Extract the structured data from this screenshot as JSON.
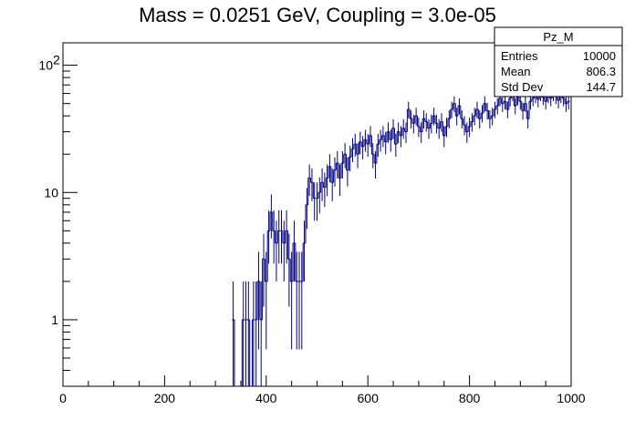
{
  "chart_data": {
    "type": "histogram",
    "title": "Mass = 0.0251 GeV, Coupling = 3.0e-05",
    "xlabel": "",
    "ylabel": "",
    "xlim": [
      0,
      1000
    ],
    "ylim": [
      0.3,
      150
    ],
    "yscale": "log",
    "grid": false,
    "line_color": "#000080",
    "x_ticks": [
      {
        "value": 0,
        "label": "0"
      },
      {
        "value": 200,
        "label": "200"
      },
      {
        "value": 400,
        "label": "400"
      },
      {
        "value": 600,
        "label": "600"
      },
      {
        "value": 800,
        "label": "800"
      },
      {
        "value": 1000,
        "label": "1000"
      }
    ],
    "y_ticks": [
      {
        "value": 1,
        "label": "1"
      },
      {
        "value": 10,
        "label": "10"
      },
      {
        "value": 100,
        "label": "10",
        "exponent": "2"
      }
    ],
    "bin_width": 5,
    "bins": [
      {
        "x": 335,
        "y": 1
      },
      {
        "x": 340,
        "y": 0
      },
      {
        "x": 350,
        "y": 0
      },
      {
        "x": 355,
        "y": 1
      },
      {
        "x": 360,
        "y": 1
      },
      {
        "x": 365,
        "y": 1
      },
      {
        "x": 370,
        "y": 0
      },
      {
        "x": 375,
        "y": 1
      },
      {
        "x": 380,
        "y": 1
      },
      {
        "x": 385,
        "y": 2
      },
      {
        "x": 390,
        "y": 1
      },
      {
        "x": 395,
        "y": 3
      },
      {
        "x": 400,
        "y": 2
      },
      {
        "x": 405,
        "y": 5
      },
      {
        "x": 410,
        "y": 7
      },
      {
        "x": 415,
        "y": 5
      },
      {
        "x": 420,
        "y": 4
      },
      {
        "x": 425,
        "y": 5
      },
      {
        "x": 430,
        "y": 5
      },
      {
        "x": 435,
        "y": 4
      },
      {
        "x": 440,
        "y": 5
      },
      {
        "x": 445,
        "y": 3
      },
      {
        "x": 450,
        "y": 2
      },
      {
        "x": 455,
        "y": 4
      },
      {
        "x": 460,
        "y": 2
      },
      {
        "x": 465,
        "y": 2
      },
      {
        "x": 470,
        "y": 2
      },
      {
        "x": 475,
        "y": 4
      },
      {
        "x": 480,
        "y": 8
      },
      {
        "x": 485,
        "y": 13
      },
      {
        "x": 490,
        "y": 12
      },
      {
        "x": 495,
        "y": 9
      },
      {
        "x": 500,
        "y": 9
      },
      {
        "x": 505,
        "y": 10
      },
      {
        "x": 510,
        "y": 12
      },
      {
        "x": 515,
        "y": 11
      },
      {
        "x": 520,
        "y": 13
      },
      {
        "x": 525,
        "y": 16
      },
      {
        "x": 530,
        "y": 12
      },
      {
        "x": 535,
        "y": 15
      },
      {
        "x": 540,
        "y": 17
      },
      {
        "x": 545,
        "y": 13
      },
      {
        "x": 550,
        "y": 17
      },
      {
        "x": 555,
        "y": 20
      },
      {
        "x": 560,
        "y": 15
      },
      {
        "x": 565,
        "y": 19
      },
      {
        "x": 570,
        "y": 22
      },
      {
        "x": 575,
        "y": 24
      },
      {
        "x": 580,
        "y": 20
      },
      {
        "x": 585,
        "y": 25
      },
      {
        "x": 590,
        "y": 23
      },
      {
        "x": 595,
        "y": 26
      },
      {
        "x": 600,
        "y": 24
      },
      {
        "x": 605,
        "y": 28
      },
      {
        "x": 610,
        "y": 20
      },
      {
        "x": 615,
        "y": 17
      },
      {
        "x": 620,
        "y": 24
      },
      {
        "x": 625,
        "y": 26
      },
      {
        "x": 630,
        "y": 28
      },
      {
        "x": 635,
        "y": 25
      },
      {
        "x": 640,
        "y": 30
      },
      {
        "x": 645,
        "y": 26
      },
      {
        "x": 650,
        "y": 32
      },
      {
        "x": 655,
        "y": 24
      },
      {
        "x": 660,
        "y": 30
      },
      {
        "x": 665,
        "y": 28
      },
      {
        "x": 670,
        "y": 32
      },
      {
        "x": 675,
        "y": 30
      },
      {
        "x": 680,
        "y": 45
      },
      {
        "x": 685,
        "y": 38
      },
      {
        "x": 690,
        "y": 35
      },
      {
        "x": 695,
        "y": 40
      },
      {
        "x": 700,
        "y": 33
      },
      {
        "x": 705,
        "y": 30
      },
      {
        "x": 710,
        "y": 38
      },
      {
        "x": 715,
        "y": 36
      },
      {
        "x": 720,
        "y": 32
      },
      {
        "x": 725,
        "y": 35
      },
      {
        "x": 730,
        "y": 40
      },
      {
        "x": 735,
        "y": 35
      },
      {
        "x": 740,
        "y": 32
      },
      {
        "x": 745,
        "y": 36
      },
      {
        "x": 750,
        "y": 28
      },
      {
        "x": 755,
        "y": 33
      },
      {
        "x": 760,
        "y": 38
      },
      {
        "x": 765,
        "y": 45
      },
      {
        "x": 770,
        "y": 50
      },
      {
        "x": 775,
        "y": 40
      },
      {
        "x": 780,
        "y": 48
      },
      {
        "x": 785,
        "y": 38
      },
      {
        "x": 790,
        "y": 34
      },
      {
        "x": 795,
        "y": 30
      },
      {
        "x": 800,
        "y": 33
      },
      {
        "x": 805,
        "y": 36
      },
      {
        "x": 810,
        "y": 40
      },
      {
        "x": 815,
        "y": 45
      },
      {
        "x": 820,
        "y": 38
      },
      {
        "x": 825,
        "y": 42
      },
      {
        "x": 830,
        "y": 50
      },
      {
        "x": 835,
        "y": 44
      },
      {
        "x": 840,
        "y": 38
      },
      {
        "x": 845,
        "y": 40
      },
      {
        "x": 850,
        "y": 45
      },
      {
        "x": 855,
        "y": 48
      },
      {
        "x": 860,
        "y": 55
      },
      {
        "x": 865,
        "y": 50
      },
      {
        "x": 870,
        "y": 52
      },
      {
        "x": 875,
        "y": 45
      },
      {
        "x": 880,
        "y": 55
      },
      {
        "x": 885,
        "y": 60
      },
      {
        "x": 890,
        "y": 48
      },
      {
        "x": 895,
        "y": 56
      },
      {
        "x": 900,
        "y": 52
      },
      {
        "x": 905,
        "y": 44
      },
      {
        "x": 910,
        "y": 50
      },
      {
        "x": 915,
        "y": 38
      },
      {
        "x": 920,
        "y": 52
      },
      {
        "x": 925,
        "y": 55
      },
      {
        "x": 930,
        "y": 58
      },
      {
        "x": 935,
        "y": 54
      },
      {
        "x": 940,
        "y": 60
      },
      {
        "x": 945,
        "y": 56
      },
      {
        "x": 950,
        "y": 52
      },
      {
        "x": 955,
        "y": 58
      },
      {
        "x": 960,
        "y": 55
      },
      {
        "x": 965,
        "y": 60
      },
      {
        "x": 970,
        "y": 57
      },
      {
        "x": 975,
        "y": 53
      },
      {
        "x": 980,
        "y": 58
      },
      {
        "x": 985,
        "y": 55
      },
      {
        "x": 990,
        "y": 50
      },
      {
        "x": 995,
        "y": 52
      }
    ]
  },
  "stats_box": {
    "name": "Pz_M",
    "rows": [
      {
        "label": "Entries",
        "value": "10000"
      },
      {
        "label": "Mean",
        "value": "806.3"
      },
      {
        "label": "Std Dev",
        "value": "144.7"
      }
    ]
  }
}
